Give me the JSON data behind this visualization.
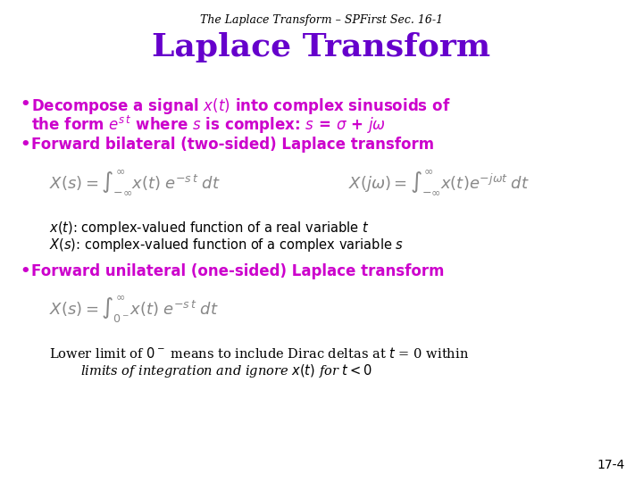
{
  "background_color": "#ffffff",
  "header_text": "The Laplace Transform – SPFirst Sec. 16-1",
  "header_fontsize": 9,
  "header_color": "#000000",
  "title_text": "Laplace Transform",
  "title_fontsize": 26,
  "title_color": "#6600cc",
  "bullet_color": "#cc00cc",
  "bullet_fontsize": 12,
  "eq_fontsize": 13,
  "note_fontsize": 10.5,
  "page_number": "17-4",
  "purple_bold": "#cc00cc",
  "gray": "#888888",
  "black": "#000000"
}
